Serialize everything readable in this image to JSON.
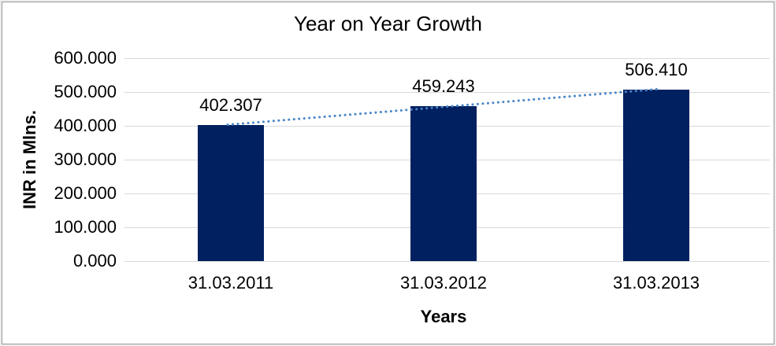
{
  "chart_data": {
    "type": "bar",
    "title": "Year on Year Growth",
    "xlabel": "Years",
    "ylabel": "INR in Mlns.",
    "categories": [
      "31.03.2011",
      "31.03.2012",
      "31.03.2013"
    ],
    "series": [
      {
        "name": "INR in Mlns.",
        "values": [
          402.307,
          459.243,
          506.41
        ],
        "data_labels": [
          "402.307",
          "459.243",
          "506.410"
        ]
      }
    ],
    "trendline": {
      "type": "linear",
      "style": "dotted",
      "color": "#4a86c8"
    },
    "ylim": [
      0,
      600
    ],
    "ytick_step": 100,
    "ytick_labels": [
      "0.000",
      "100.000",
      "200.000",
      "300.000",
      "400.000",
      "500.000",
      "600.000"
    ],
    "grid": true,
    "legend": "none",
    "colors": {
      "bar_fill": "#002060",
      "gridline": "#d9d9d9",
      "text": "#000000",
      "background": "#ffffff",
      "frame_border": "#989898"
    }
  }
}
